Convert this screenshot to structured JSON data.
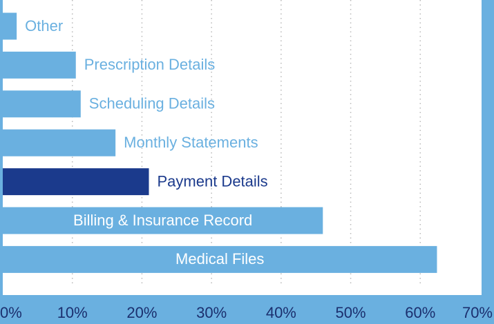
{
  "chart_data": {
    "type": "barh",
    "categories": [
      "Other",
      "Prescription Details",
      "Scheduling Details",
      "Monthly Statements",
      "Payment Details",
      "Billing & Insurance Record",
      "Medical Files"
    ],
    "values": [
      2,
      10.5,
      11.2,
      16.2,
      21,
      46,
      62.4
    ],
    "colors": [
      "#6ab0e0",
      "#6ab0e0",
      "#6ab0e0",
      "#6ab0e0",
      "#1b3a8c",
      "#6ab0e0",
      "#6ab0e0"
    ],
    "xlim": [
      0,
      70
    ],
    "xticks": [
      {
        "value": 0,
        "label": "0%"
      },
      {
        "value": 10,
        "label": "10%"
      },
      {
        "value": 20,
        "label": "20%"
      },
      {
        "value": 30,
        "label": "30%"
      },
      {
        "value": 40,
        "label": "40%"
      },
      {
        "value": 50,
        "label": "50%"
      },
      {
        "value": 60,
        "label": "60%"
      },
      {
        "value": 70,
        "label": "70%"
      }
    ],
    "grid": true
  }
}
